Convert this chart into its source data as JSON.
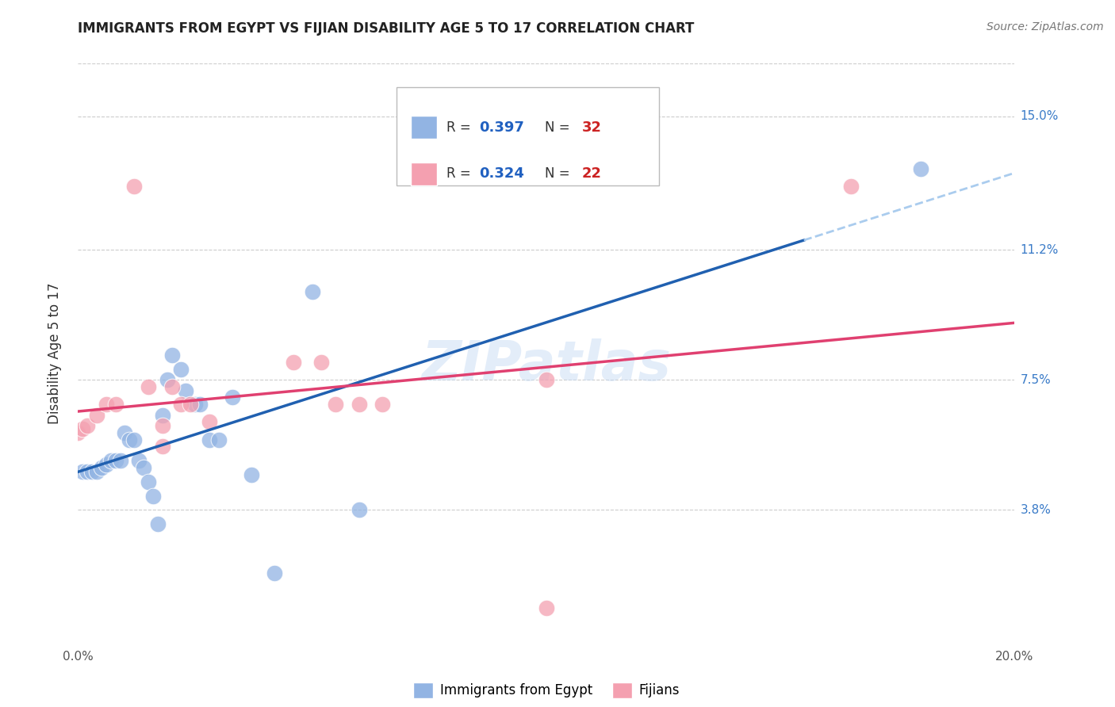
{
  "title": "IMMIGRANTS FROM EGYPT VS FIJIAN DISABILITY AGE 5 TO 17 CORRELATION CHART",
  "source": "Source: ZipAtlas.com",
  "ylabel": "Disability Age 5 to 17",
  "xlim": [
    0.0,
    0.2
  ],
  "ylim": [
    0.0,
    0.165
  ],
  "ytick_labels_right": [
    "15.0%",
    "11.2%",
    "7.5%",
    "3.8%"
  ],
  "ytick_vals_right": [
    0.15,
    0.112,
    0.075,
    0.038
  ],
  "blue_color": "#92b4e3",
  "pink_color": "#f4a0b0",
  "blue_line_color": "#2060b0",
  "pink_line_color": "#e04070",
  "dash_line_color": "#aaccee",
  "watermark": "ZIPatlas",
  "blue_points": [
    [
      0.001,
      0.049
    ],
    [
      0.002,
      0.049
    ],
    [
      0.003,
      0.049
    ],
    [
      0.004,
      0.049
    ],
    [
      0.005,
      0.05
    ],
    [
      0.006,
      0.051
    ],
    [
      0.007,
      0.052
    ],
    [
      0.008,
      0.052
    ],
    [
      0.009,
      0.052
    ],
    [
      0.01,
      0.06
    ],
    [
      0.011,
      0.058
    ],
    [
      0.012,
      0.058
    ],
    [
      0.013,
      0.052
    ],
    [
      0.014,
      0.05
    ],
    [
      0.015,
      0.046
    ],
    [
      0.016,
      0.042
    ],
    [
      0.017,
      0.034
    ],
    [
      0.018,
      0.065
    ],
    [
      0.019,
      0.075
    ],
    [
      0.02,
      0.082
    ],
    [
      0.022,
      0.078
    ],
    [
      0.023,
      0.072
    ],
    [
      0.025,
      0.068
    ],
    [
      0.026,
      0.068
    ],
    [
      0.028,
      0.058
    ],
    [
      0.03,
      0.058
    ],
    [
      0.033,
      0.07
    ],
    [
      0.037,
      0.048
    ],
    [
      0.042,
      0.02
    ],
    [
      0.05,
      0.1
    ],
    [
      0.06,
      0.038
    ],
    [
      0.18,
      0.135
    ]
  ],
  "pink_points": [
    [
      0.0,
      0.06
    ],
    [
      0.001,
      0.061
    ],
    [
      0.002,
      0.062
    ],
    [
      0.004,
      0.065
    ],
    [
      0.006,
      0.068
    ],
    [
      0.008,
      0.068
    ],
    [
      0.012,
      0.13
    ],
    [
      0.015,
      0.073
    ],
    [
      0.018,
      0.062
    ],
    [
      0.018,
      0.056
    ],
    [
      0.02,
      0.073
    ],
    [
      0.022,
      0.068
    ],
    [
      0.024,
      0.068
    ],
    [
      0.028,
      0.063
    ],
    [
      0.046,
      0.08
    ],
    [
      0.052,
      0.08
    ],
    [
      0.055,
      0.068
    ],
    [
      0.06,
      0.068
    ],
    [
      0.065,
      0.068
    ],
    [
      0.1,
      0.075
    ],
    [
      0.165,
      0.13
    ],
    [
      0.1,
      0.01
    ]
  ],
  "background_color": "#ffffff",
  "grid_color": "#cccccc"
}
